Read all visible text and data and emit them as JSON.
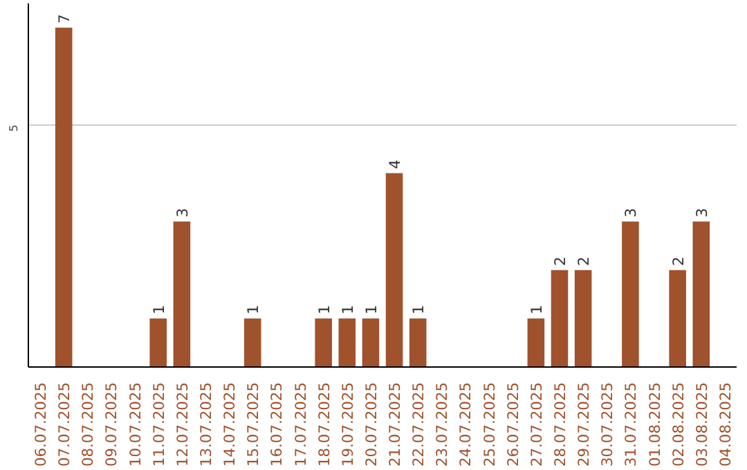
{
  "chart_data": {
    "type": "bar",
    "categories": [
      "06.07.2025",
      "07.07.2025",
      "08.07.2025",
      "09.07.2025",
      "10.07.2025",
      "11.07.2025",
      "12.07.2025",
      "13.07.2025",
      "14.07.2025",
      "15.07.2025",
      "16.07.2025",
      "17.07.2025",
      "18.07.2025",
      "19.07.2025",
      "20.07.2025",
      "21.07.2025",
      "22.07.2025",
      "23.07.2025",
      "24.07.2025",
      "25.07.2025",
      "26.07.2025",
      "27.07.2025",
      "28.07.2025",
      "29.07.2025",
      "30.07.2025",
      "31.07.2025",
      "01.08.2025",
      "02.08.2025",
      "03.08.2025",
      "04.08.2025"
    ],
    "values": [
      null,
      7,
      null,
      null,
      null,
      1,
      3,
      null,
      null,
      1,
      null,
      null,
      1,
      1,
      1,
      4,
      1,
      null,
      null,
      null,
      null,
      1,
      2,
      2,
      null,
      3,
      null,
      2,
      3,
      null
    ],
    "color": "#a0522d",
    "ylim": [
      0,
      7.5
    ],
    "yticks": [
      5
    ],
    "grid": "y",
    "data_labels": true
  }
}
